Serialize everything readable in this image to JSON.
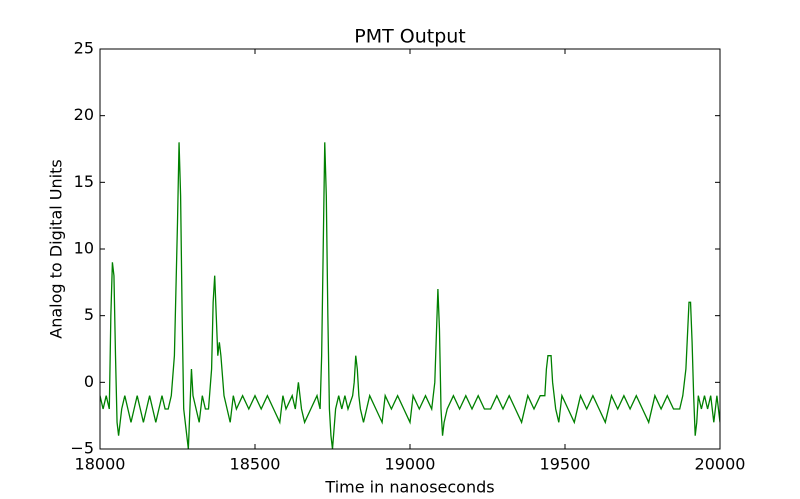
{
  "chart_data": {
    "type": "line",
    "title": "PMT Output",
    "x_label": "Time in nanoseconds",
    "y_label": "Analog to Digital Units",
    "x": [
      18000,
      18010,
      18020,
      18030,
      18035,
      18040,
      18045,
      18050,
      18055,
      18060,
      18065,
      18070,
      18080,
      18090,
      18100,
      18110,
      18120,
      18130,
      18140,
      18150,
      18160,
      18170,
      18180,
      18190,
      18200,
      18210,
      18220,
      18230,
      18240,
      18250,
      18255,
      18260,
      18265,
      18270,
      18280,
      18285,
      18290,
      18295,
      18300,
      18310,
      18320,
      18330,
      18340,
      18350,
      18360,
      18365,
      18370,
      18375,
      18380,
      18385,
      18390,
      18400,
      18410,
      18420,
      18430,
      18440,
      18460,
      18480,
      18500,
      18520,
      18540,
      18560,
      18580,
      18590,
      18600,
      18620,
      18630,
      18640,
      18650,
      18660,
      18680,
      18700,
      18710,
      18715,
      18720,
      18725,
      18730,
      18735,
      18740,
      18745,
      18750,
      18760,
      18770,
      18780,
      18790,
      18800,
      18815,
      18820,
      18825,
      18830,
      18835,
      18840,
      18850,
      18860,
      18870,
      18890,
      18910,
      18920,
      18940,
      18960,
      18980,
      19000,
      19010,
      19030,
      19050,
      19070,
      19080,
      19090,
      19095,
      19100,
      19105,
      19110,
      19120,
      19140,
      19160,
      19180,
      19200,
      19220,
      19240,
      19260,
      19280,
      19300,
      19320,
      19340,
      19360,
      19380,
      19400,
      19420,
      19435,
      19440,
      19445,
      19455,
      19460,
      19470,
      19480,
      19490,
      19510,
      19530,
      19550,
      19570,
      19590,
      19610,
      19630,
      19650,
      19670,
      19690,
      19710,
      19730,
      19750,
      19770,
      19790,
      19810,
      19830,
      19850,
      19870,
      19880,
      19890,
      19900,
      19905,
      19910,
      19915,
      19920,
      19925,
      19930,
      19940,
      19950,
      19960,
      19970,
      19980,
      19990,
      20000
    ],
    "series": [
      {
        "name": "PMT",
        "color": "#008000",
        "values": [
          -1,
          -2,
          -1,
          -2,
          5,
          9,
          8,
          2,
          -3,
          -4,
          -3,
          -2,
          -1,
          -2,
          -3,
          -2,
          -1,
          -2,
          -3,
          -2,
          -1,
          -2,
          -3,
          -2,
          -1,
          -2,
          -2,
          -1,
          2,
          12,
          18,
          14,
          5,
          -2,
          -4,
          -5,
          -2,
          1,
          -1,
          -2,
          -3,
          -1,
          -2,
          -2,
          1,
          6,
          8,
          5,
          2,
          3,
          2,
          -1,
          -2,
          -3,
          -1,
          -2,
          -1,
          -2,
          -1,
          -2,
          -1,
          -2,
          -3,
          -1,
          -2,
          -1,
          -2,
          0,
          -2,
          -3,
          -2,
          -1,
          -2,
          2,
          10,
          18,
          14,
          5,
          -2,
          -4,
          -5,
          -2,
          -1,
          -2,
          -1,
          -2,
          -1,
          0,
          2,
          1,
          -1,
          -2,
          -3,
          -2,
          -1,
          -2,
          -3,
          -1,
          -2,
          -1,
          -2,
          -3,
          -1,
          -2,
          -1,
          -2,
          0,
          7,
          4,
          -2,
          -4,
          -3,
          -2,
          -1,
          -2,
          -1,
          -2,
          -1,
          -2,
          -2,
          -1,
          -2,
          -1,
          -2,
          -3,
          -1,
          -2,
          -1,
          -1,
          1,
          2,
          2,
          0,
          -2,
          -3,
          -1,
          -2,
          -3,
          -1,
          -2,
          -1,
          -2,
          -3,
          -1,
          -2,
          -1,
          -2,
          -1,
          -2,
          -3,
          -1,
          -2,
          -1,
          -2,
          -2,
          -1,
          1,
          6,
          6,
          3,
          -1,
          -4,
          -3,
          -1,
          -2,
          -1,
          -2,
          -1,
          -3,
          -1,
          -3
        ]
      }
    ],
    "xlim": [
      18000,
      20000
    ],
    "xticks": [
      18000,
      18500,
      19000,
      19500,
      20000
    ],
    "ylim": [
      -5,
      25
    ],
    "yticks": [
      {
        "value": -5,
        "label": "−5"
      },
      0,
      5,
      10,
      15,
      20,
      25
    ],
    "grid": false
  }
}
